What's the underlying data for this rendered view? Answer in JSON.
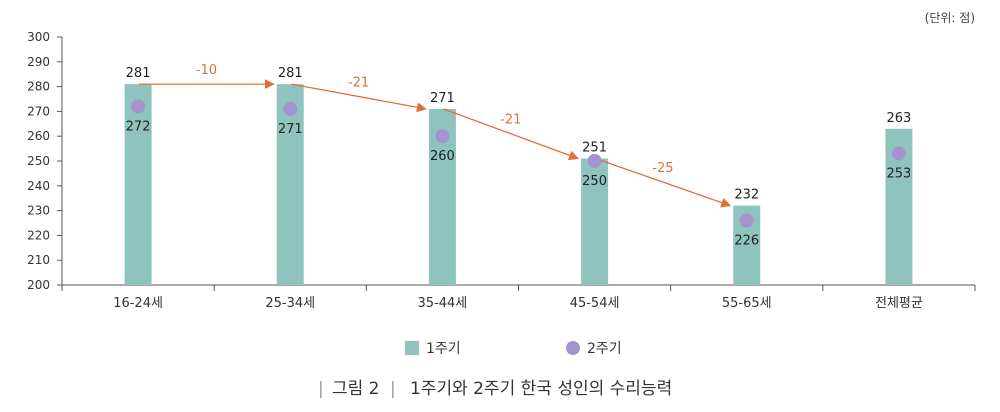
{
  "chart_data": {
    "type": "bar",
    "unit_label": "(단위: 점)",
    "categories": [
      "16-24세",
      "25-34세",
      "35-44세",
      "45-54세",
      "55-65세",
      "전체평균"
    ],
    "series": [
      {
        "name": "1주기",
        "kind": "bar",
        "values": [
          281,
          281,
          271,
          251,
          232,
          263
        ]
      },
      {
        "name": "2주기",
        "kind": "point",
        "values": [
          272,
          271,
          260,
          250,
          226,
          253
        ]
      }
    ],
    "ylim": [
      200,
      300
    ],
    "yticks": [
      200,
      210,
      220,
      230,
      240,
      250,
      260,
      270,
      280,
      290,
      300
    ],
    "arrows": [
      {
        "from": 0,
        "to": 1,
        "label": "-10"
      },
      {
        "from": 1,
        "to": 2,
        "label": "-21"
      },
      {
        "from": 2,
        "to": 3,
        "label": "-21"
      },
      {
        "from": 3,
        "to": 4,
        "label": "-25"
      }
    ],
    "colors": {
      "bar": "#8fc3bd",
      "point": "#a393cf",
      "arrow": "#e0703a"
    },
    "legend_position": "bottom",
    "grid": false
  },
  "caption": {
    "figure_label": "그림 2",
    "title": "1주기와 2주기 한국 성인의 수리능력"
  }
}
